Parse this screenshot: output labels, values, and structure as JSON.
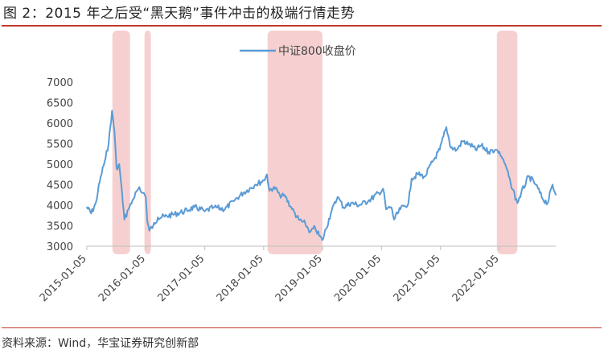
{
  "title": "图 2：2015 年之后受“黑天鹅”事件冲击的极端行情走势",
  "source": "资料来源：Wind，华宝证券研究创新部",
  "colors": {
    "line": "#5b9bd5",
    "shade": "#f4c8c8",
    "rule": "#c0392b"
  },
  "chart_data": {
    "type": "line",
    "title": "",
    "xlabel": "",
    "ylabel": "",
    "ylim": [
      3000,
      7000
    ],
    "yticks": [
      3000,
      3500,
      4000,
      4500,
      5000,
      5500,
      6000,
      6500,
      7000
    ],
    "xticks": [
      "2015-01-05",
      "2016-01-05",
      "2017-01-05",
      "2018-01-05",
      "2019-01-05",
      "2020-01-05",
      "2021-01-05",
      "2022-01-05"
    ],
    "grid": false,
    "legend_position": "top-center",
    "series": [
      {
        "name": "中证800收盘价",
        "x": [
          "2015-01-05",
          "2015-02-01",
          "2015-03-01",
          "2015-04-01",
          "2015-05-01",
          "2015-05-20",
          "2015-06-10",
          "2015-06-25",
          "2015-07-08",
          "2015-07-25",
          "2015-08-15",
          "2015-08-26",
          "2015-09-20",
          "2015-10-20",
          "2015-11-20",
          "2015-12-20",
          "2016-01-05",
          "2016-01-15",
          "2016-01-28",
          "2016-02-20",
          "2016-03-20",
          "2016-05-01",
          "2016-07-01",
          "2016-09-01",
          "2016-11-01",
          "2016-12-10",
          "2017-01-05",
          "2017-03-01",
          "2017-05-10",
          "2017-07-01",
          "2017-09-01",
          "2017-11-15",
          "2018-01-05",
          "2018-01-25",
          "2018-02-10",
          "2018-03-10",
          "2018-04-15",
          "2018-05-20",
          "2018-06-30",
          "2018-08-10",
          "2018-09-20",
          "2018-10-20",
          "2018-11-20",
          "2018-12-15",
          "2019-01-04",
          "2019-02-25",
          "2019-04-08",
          "2019-05-15",
          "2019-06-30",
          "2019-08-20",
          "2019-10-15",
          "2019-12-20",
          "2020-01-15",
          "2020-02-03",
          "2020-03-05",
          "2020-03-23",
          "2020-05-01",
          "2020-06-20",
          "2020-07-10",
          "2020-08-20",
          "2020-09-30",
          "2020-11-15",
          "2020-12-31",
          "2021-02-10",
          "2021-03-10",
          "2021-04-15",
          "2021-05-20",
          "2021-06-30",
          "2021-08-10",
          "2021-09-15",
          "2021-10-30",
          "2021-12-10",
          "2022-01-05",
          "2022-02-10",
          "2022-03-15",
          "2022-04-26",
          "2022-05-20",
          "2022-07-05",
          "2022-08-20",
          "2022-09-30",
          "2022-10-31",
          "2022-11-30",
          "2022-12-20"
        ],
        "values": [
          3950,
          3800,
          4050,
          4700,
          5150,
          5500,
          6300,
          5800,
          4900,
          5000,
          4100,
          3650,
          3900,
          4150,
          4400,
          4300,
          4200,
          3600,
          3380,
          3500,
          3700,
          3720,
          3780,
          3850,
          3950,
          3900,
          3850,
          3950,
          3900,
          4100,
          4300,
          4500,
          4600,
          4750,
          4350,
          4450,
          4250,
          4200,
          3900,
          3650,
          3550,
          3350,
          3450,
          3250,
          3150,
          3800,
          4200,
          3950,
          4050,
          4000,
          4100,
          4300,
          4400,
          3900,
          3950,
          3650,
          3900,
          4050,
          4650,
          4750,
          4700,
          5050,
          5350,
          5900,
          5400,
          5350,
          5550,
          5500,
          5350,
          5450,
          5300,
          5350,
          5300,
          5000,
          4550,
          4050,
          4300,
          4700,
          4500,
          4150,
          4050,
          4500,
          4250
        ]
      }
    ],
    "shaded_periods": [
      [
        "2015-06-12",
        "2015-09-30"
      ],
      [
        "2015-12-28",
        "2016-02-05"
      ],
      [
        "2018-01-29",
        "2019-01-04"
      ],
      [
        "2021-12-20",
        "2022-04-26"
      ]
    ]
  }
}
